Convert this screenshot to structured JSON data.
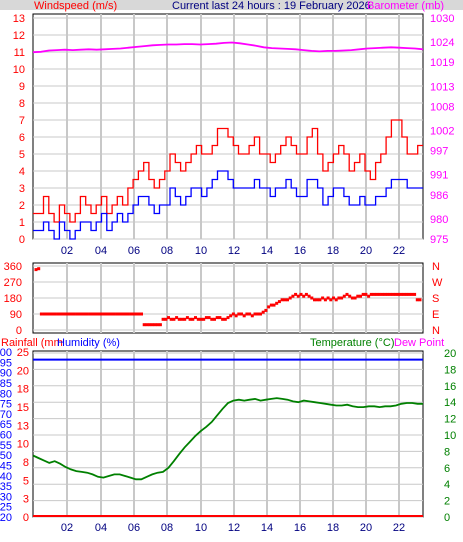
{
  "header": {
    "windspeed_label": "Windspeed (m/s)",
    "center_title": "Current last 24 hours : 19 February 2026",
    "barometer_label": "Barometer (mb)"
  },
  "colors": {
    "gust": "#ff0000",
    "wind": "#0000ff",
    "barometer": "#ff00ff",
    "direction": "#ff0000",
    "rainfall": "#ff0000",
    "humidity": "#0000ff",
    "temperature": "#008000",
    "dewpoint": "#ff00ff",
    "grid": "#c8c8c8",
    "header_bg": "#d8d8d8"
  },
  "chart_data": [
    {
      "type": "line",
      "name": "wind-barometer",
      "xlabel": "",
      "x_ticks": [
        "02",
        "04",
        "06",
        "08",
        "10",
        "12",
        "14",
        "16",
        "18",
        "20",
        "22"
      ],
      "y_left_ticks": [
        "0",
        "1",
        "2",
        "3",
        "4",
        "5",
        "6",
        "7",
        "8",
        "9",
        "10",
        "11",
        "12",
        "13"
      ],
      "y_left_range": [
        0,
        13
      ],
      "y_right_ticks": [
        "975",
        "980",
        "986",
        "991",
        "997",
        "1002",
        "1008",
        "1013",
        "1019",
        "1024",
        "1030"
      ],
      "y_right_range": [
        975,
        1030
      ],
      "grid": true,
      "series": [
        {
          "name": "Gust",
          "values": [
            1.5,
            1.5,
            2.5,
            1.5,
            1,
            2,
            1.5,
            1,
            1.5,
            2.5,
            2,
            1.5,
            2,
            2.5,
            1.5,
            2,
            2.5,
            2,
            3,
            3.5,
            4,
            4.5,
            3.5,
            3,
            3.5,
            4,
            5,
            4.5,
            4,
            4.5,
            5,
            5.5,
            5,
            5,
            5.5,
            6.5,
            6.5,
            6,
            5.5,
            5,
            5,
            5.5,
            6,
            5,
            5,
            4.5,
            5,
            5.5,
            6,
            5.5,
            5,
            5,
            6,
            6.5,
            5,
            4,
            4.5,
            5,
            5.5,
            5,
            4,
            4.5,
            5,
            4,
            3.5,
            4.5,
            5,
            6,
            7,
            7,
            6,
            5,
            5,
            5.5
          ]
        },
        {
          "name": "Windspeed",
          "values": [
            0.5,
            0.5,
            1,
            0.5,
            0,
            1,
            0.5,
            0,
            0.5,
            1,
            1,
            0.5,
            1,
            1.5,
            0.5,
            1,
            1.5,
            1,
            1.5,
            2,
            2.5,
            2.5,
            2,
            1.5,
            2,
            2,
            3,
            2.5,
            2,
            2.5,
            3,
            3,
            2.5,
            3,
            3.5,
            4,
            4,
            3.5,
            3,
            3,
            3,
            3,
            3.5,
            3,
            3,
            2.5,
            3,
            3,
            3.5,
            3,
            2.5,
            2.5,
            3.5,
            3.5,
            3,
            2,
            2.5,
            3,
            3,
            2.5,
            2,
            2,
            2.5,
            2,
            2,
            2.5,
            2.5,
            3,
            3.5,
            3.5,
            3.5,
            3,
            3,
            3
          ]
        },
        {
          "name": "Barometer",
          "values": [
            1021.5,
            1021.6,
            1021.9,
            1022.0,
            1022.1,
            1022.0,
            1022.1,
            1022.2,
            1022.1,
            1022.2,
            1022.3,
            1022.4,
            1022.6,
            1022.8,
            1023.0,
            1023.2,
            1023.3,
            1023.4,
            1023.4,
            1023.5,
            1023.5,
            1023.4,
            1023.5,
            1023.6,
            1023.8,
            1023.9,
            1023.7,
            1023.4,
            1023.1,
            1022.7,
            1022.5,
            1022.4,
            1022.3,
            1022.2,
            1022.0,
            1021.8,
            1021.7,
            1021.8,
            1021.8,
            1021.9,
            1022.0,
            1022.2,
            1022.4,
            1022.5,
            1022.6,
            1022.7,
            1022.6,
            1022.5,
            1022.4,
            1022.2
          ]
        }
      ]
    },
    {
      "type": "scatter",
      "name": "wind-direction",
      "y_left_ticks": [
        "360",
        "270",
        "180",
        "90",
        "0"
      ],
      "y_range": [
        0,
        360
      ],
      "y_right_ticks": [
        "N",
        "W",
        "S",
        "E",
        "N"
      ],
      "grid": true,
      "values": [
        340,
        345,
        90,
        90,
        90,
        90,
        90,
        90,
        90,
        90,
        90,
        90,
        90,
        90,
        90,
        90,
        90,
        90,
        90,
        90,
        90,
        90,
        90,
        90,
        90,
        90,
        90,
        90,
        90,
        90,
        90,
        90,
        90,
        90,
        90,
        90,
        90,
        90,
        90,
        90,
        30,
        30,
        30,
        30,
        30,
        30,
        30,
        60,
        60,
        70,
        60,
        60,
        70,
        60,
        60,
        60,
        70,
        60,
        60,
        70,
        60,
        60,
        60,
        70,
        70,
        60,
        60,
        70,
        70,
        60,
        60,
        70,
        80,
        90,
        80,
        90,
        90,
        80,
        90,
        90,
        80,
        90,
        90,
        90,
        100,
        110,
        130,
        140,
        140,
        150,
        160,
        170,
        170,
        170,
        180,
        190,
        200,
        190,
        200,
        190,
        200,
        190,
        180,
        170,
        170,
        170,
        180,
        170,
        180,
        170,
        180,
        170,
        180,
        180,
        190,
        200,
        190,
        180,
        180,
        190,
        190,
        200,
        200,
        190,
        200,
        200,
        200,
        200,
        200,
        200,
        200,
        200,
        200,
        200,
        200,
        200,
        200,
        200,
        200,
        200,
        200,
        170,
        170
      ]
    },
    {
      "type": "line",
      "name": "temp-rain-humidity",
      "labels": {
        "rainfall": "Rainfall (mm",
        "humidity": "Humidity (%)",
        "temperature": "Temperature (°C)",
        "dewpoint": "Dew Point"
      },
      "y_left_outer_ticks": [
        "100",
        "95",
        "90",
        "85",
        "80",
        "75",
        "70",
        "65",
        "60",
        "55",
        "50",
        "45",
        "40",
        "35",
        "30",
        "25",
        "20"
      ],
      "y_left_inner_ticks": [
        "25",
        "20",
        "18",
        "15",
        "13",
        "10",
        "8",
        "5",
        "3",
        "0"
      ],
      "y_right_ticks": [
        "20",
        "18",
        "16",
        "14",
        "12",
        "10",
        "8",
        "6",
        "4",
        "2",
        "0"
      ],
      "temperature_range": [
        0,
        20
      ],
      "grid": true,
      "series": [
        {
          "name": "Temperature",
          "values": [
            7.5,
            7.2,
            6.9,
            6.6,
            6.8,
            6.5,
            6.1,
            5.8,
            5.6,
            5.5,
            5.4,
            5.2,
            4.9,
            4.8,
            5.0,
            5.2,
            5.2,
            5.0,
            4.8,
            4.6,
            4.6,
            4.9,
            5.2,
            5.4,
            5.5,
            6.0,
            6.8,
            7.7,
            8.5,
            9.2,
            9.9,
            10.5,
            11.0,
            11.6,
            12.4,
            13.2,
            13.9,
            14.2,
            14.3,
            14.2,
            14.3,
            14.4,
            14.2,
            14.3,
            14.4,
            14.5,
            14.4,
            14.3,
            14.1,
            14.0,
            14.2,
            14.1,
            14.0,
            13.9,
            13.8,
            13.7,
            13.6,
            13.6,
            13.7,
            13.5,
            13.4,
            13.4,
            13.5,
            13.5,
            13.4,
            13.5,
            13.5,
            13.6,
            13.8,
            13.9,
            13.9,
            13.8,
            13.8
          ]
        },
        {
          "name": "Humidity",
          "values": [
            96,
            96,
            96,
            96,
            96,
            96,
            96,
            96,
            96,
            96,
            96,
            96,
            96,
            96,
            96,
            96,
            96,
            96,
            96,
            96,
            96,
            96,
            96,
            96,
            96,
            96,
            96,
            96,
            96,
            96,
            96,
            96,
            96,
            96,
            96,
            96,
            96,
            96,
            96,
            96
          ]
        },
        {
          "name": "Rainfall",
          "values": [
            0,
            0,
            0,
            0,
            0,
            0,
            0,
            0,
            0,
            0,
            0,
            0,
            0,
            0,
            0,
            0,
            0,
            0,
            0,
            0,
            0,
            0,
            0,
            0,
            0,
            0,
            0,
            0,
            0,
            0,
            0,
            0,
            0,
            0,
            0,
            0,
            0,
            0,
            0,
            0
          ]
        }
      ],
      "x_ticks": [
        "02",
        "04",
        "06",
        "08",
        "10",
        "12",
        "14",
        "16",
        "18",
        "20",
        "22"
      ]
    }
  ]
}
